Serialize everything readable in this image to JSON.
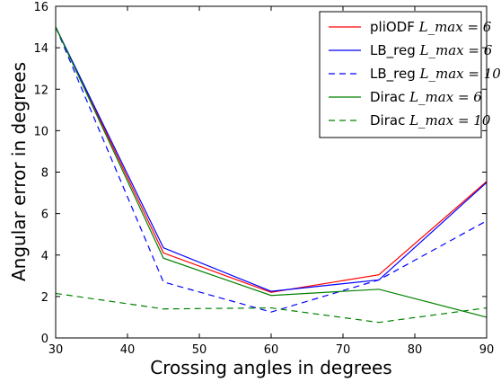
{
  "chart_data": {
    "type": "line",
    "xlabel": "Crossing angles in degrees",
    "ylabel": "Angular error in degrees",
    "xlim": [
      30,
      90
    ],
    "ylim": [
      0,
      16
    ],
    "xticks": [
      "30",
      "40",
      "50",
      "60",
      "70",
      "80",
      "90"
    ],
    "yticks": [
      "0",
      "2",
      "4",
      "6",
      "8",
      "10",
      "12",
      "14",
      "16"
    ],
    "grid": false,
    "legend_position": "top-right",
    "x": [
      30,
      45,
      60,
      75,
      90
    ],
    "series": [
      {
        "name": "pliODF",
        "name_math": "L_max = 6",
        "color": "#ff0000",
        "dash": "solid",
        "values": [
          15.0,
          4.1,
          2.2,
          3.05,
          7.55
        ]
      },
      {
        "name": "LB_reg",
        "name_math": "L_max = 6",
        "color": "#0000ff",
        "dash": "solid",
        "values": [
          15.0,
          4.35,
          2.25,
          2.8,
          7.5
        ]
      },
      {
        "name": "LB_reg",
        "name_math": "L_max = 10",
        "color": "#0000ff",
        "dash": "dashed",
        "values": [
          15.0,
          2.7,
          1.25,
          2.8,
          5.65
        ]
      },
      {
        "name": "Dirac",
        "name_math": "L_max = 6",
        "color": "#008000",
        "dash": "solid",
        "values": [
          15.0,
          3.85,
          2.05,
          2.35,
          1.0
        ]
      },
      {
        "name": "Dirac",
        "name_math": "L_max = 10",
        "color": "#008000",
        "dash": "dashed",
        "values": [
          2.15,
          1.4,
          1.45,
          0.75,
          1.45
        ]
      }
    ]
  }
}
